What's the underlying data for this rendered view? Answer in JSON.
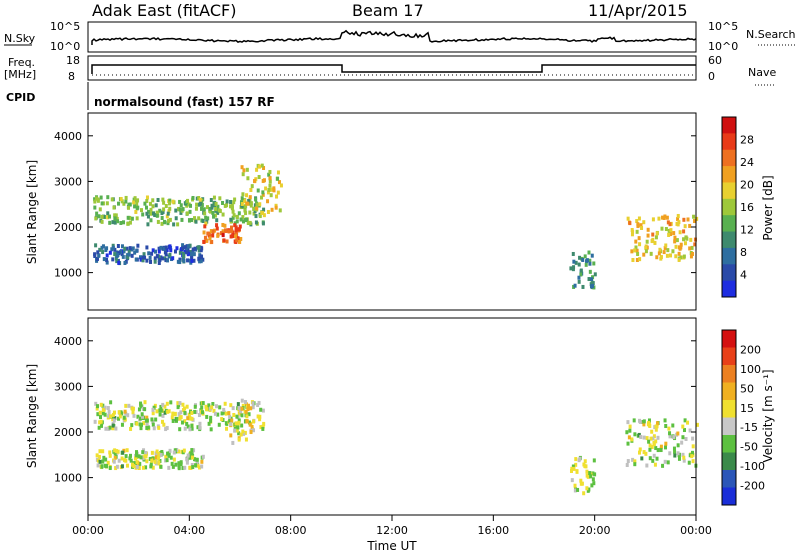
{
  "header": {
    "radar": "Adak East (fitACF)",
    "beam": "Beam 17",
    "date": "11/Apr/2015"
  },
  "top_panel": {
    "nsky_label": "N.Sky",
    "nsearch_label": "N.Search",
    "tick_hi": "10^5",
    "tick_lo": "10^0",
    "freq_label": "Freq.",
    "freq_unit": "[MHz]",
    "freq_ticks": [
      "18",
      "8"
    ],
    "nave_label": "Nave",
    "nave_ticks": [
      "60",
      "0"
    ],
    "cpid_label": "CPID",
    "cpid_text": "normalsound (fast) 157 RF"
  },
  "colors": {
    "power_scale": [
      "#1e2de0",
      "#2a4aa8",
      "#2e6ea0",
      "#3e8a6e",
      "#58b050",
      "#9ec83a",
      "#e8d030",
      "#f0a020",
      "#ee7020",
      "#e83a18",
      "#d01010"
    ],
    "velocity_scale": [
      "#1a2ed8",
      "#2b56b8",
      "#3a8a4a",
      "#5cc040",
      "#c8c8c8",
      "#f0e030",
      "#f0b020",
      "#ec8020",
      "#e84018",
      "#d41010"
    ],
    "ground_scatter": "#c0c0c0"
  },
  "chart_data": [
    {
      "type": "heatmap",
      "name": "power",
      "x_unit": "hours UT",
      "x_range": [
        0,
        24
      ],
      "x_tick_labels": [
        "00:00",
        "04:00",
        "08:00",
        "12:00",
        "16:00",
        "20:00",
        "00:00"
      ],
      "xlabel": "Time UT",
      "ylabel": "Slant Range [km]",
      "y_range": [
        180,
        4500
      ],
      "y_ticks": [
        1000,
        2000,
        3000,
        4000
      ],
      "colorbar": {
        "label": "Power [dB]",
        "range": [
          0,
          32
        ],
        "ticks": [
          4,
          8,
          12,
          16,
          20,
          24,
          28
        ]
      },
      "regions": [
        {
          "t_start": 0.2,
          "t_end": 6.9,
          "range_start": 2100,
          "range_end": 2700,
          "value": 14
        },
        {
          "t_start": 4.5,
          "t_end": 6.0,
          "range_start": 1700,
          "range_end": 2100,
          "value": 26
        },
        {
          "t_start": 6.0,
          "t_end": 7.6,
          "range_start": 2300,
          "range_end": 3400,
          "value": 18
        },
        {
          "t_start": 0.2,
          "t_end": 4.5,
          "range_start": 1250,
          "range_end": 1650,
          "value": 6
        },
        {
          "t_start": 19.0,
          "t_end": 20.0,
          "range_start": 700,
          "range_end": 1500,
          "value": 10
        },
        {
          "t_start": 21.2,
          "t_end": 24.0,
          "range_start": 1300,
          "range_end": 2300,
          "value": 20
        }
      ]
    },
    {
      "type": "heatmap",
      "name": "velocity",
      "x_unit": "hours UT",
      "x_range": [
        0,
        24
      ],
      "x_tick_labels": [
        "00:00",
        "04:00",
        "08:00",
        "12:00",
        "16:00",
        "20:00",
        "00:00"
      ],
      "xlabel": "Time UT",
      "ylabel": "Slant Range [km]",
      "y_range": [
        180,
        4500
      ],
      "y_ticks": [
        1000,
        2000,
        3000,
        4000
      ],
      "colorbar": {
        "label": "Velocity [m s⁻¹]",
        "range": [
          -250,
          250
        ],
        "ticks": [
          "200",
          "100",
          "50",
          "15",
          "-15",
          "-50",
          "-100",
          "-200"
        ]
      },
      "regions": [
        {
          "t_start": 0.2,
          "t_end": 6.9,
          "range_start": 2100,
          "range_end": 2700,
          "value": 0
        },
        {
          "t_start": 5.5,
          "t_end": 6.5,
          "range_start": 1800,
          "range_end": 2800,
          "value": -40
        },
        {
          "t_start": 0.2,
          "t_end": 4.5,
          "range_start": 1250,
          "range_end": 1650,
          "value": 0
        },
        {
          "t_start": 19.0,
          "t_end": 20.0,
          "range_start": 700,
          "range_end": 1500,
          "value": 0
        },
        {
          "t_start": 21.2,
          "t_end": 24.0,
          "range_start": 1300,
          "range_end": 2300,
          "value": 0
        }
      ]
    }
  ]
}
